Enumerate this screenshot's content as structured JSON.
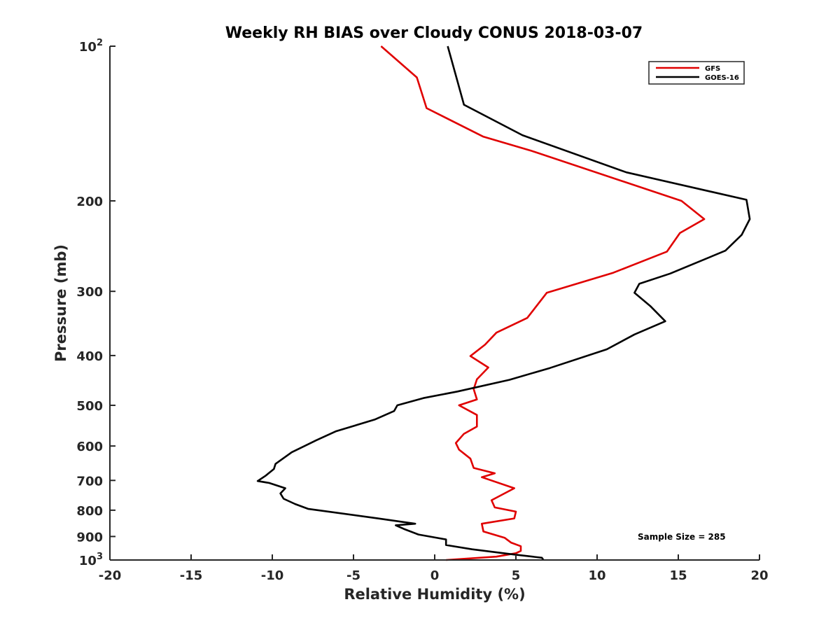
{
  "chart_data": {
    "type": "line",
    "title": "Weekly RH BIAS over Cloudy CONUS 2018-03-07",
    "xlabel": "Relative Humidity (%)",
    "ylabel": "Pressure (mb)",
    "xlim": [
      -20,
      20
    ],
    "ylim": [
      100,
      1000
    ],
    "y_scale": "log",
    "y_reversed": true,
    "grid": false,
    "legend_position": "top-right",
    "x_ticks": [
      {
        "value": -20,
        "label": "-20"
      },
      {
        "value": -15,
        "label": "-15"
      },
      {
        "value": -10,
        "label": "-10"
      },
      {
        "value": -5,
        "label": "-5"
      },
      {
        "value": 0,
        "label": "0"
      },
      {
        "value": 5,
        "label": "5"
      },
      {
        "value": 10,
        "label": "10"
      },
      {
        "value": 15,
        "label": "15"
      },
      {
        "value": 20,
        "label": "20"
      }
    ],
    "y_ticks": [
      {
        "value": 100,
        "label": "10",
        "sup": "2"
      },
      {
        "value": 200,
        "label": "200"
      },
      {
        "value": 300,
        "label": "300"
      },
      {
        "value": 400,
        "label": "400"
      },
      {
        "value": 500,
        "label": "500"
      },
      {
        "value": 600,
        "label": "600"
      },
      {
        "value": 700,
        "label": "700"
      },
      {
        "value": 800,
        "label": "800"
      },
      {
        "value": 900,
        "label": "900"
      },
      {
        "value": 1000,
        "label": "10",
        "sup": "3"
      }
    ],
    "annotation": "Sample Size = 285",
    "series": [
      {
        "name": "GFS",
        "color": "#e00000",
        "points": [
          [
            -3.3,
            100
          ],
          [
            -1.1,
            115
          ],
          [
            -0.5,
            132
          ],
          [
            3.0,
            150
          ],
          [
            6.0,
            160
          ],
          [
            15.2,
            200
          ],
          [
            16.6,
            217
          ],
          [
            15.1,
            231
          ],
          [
            14.3,
            251
          ],
          [
            11.0,
            276
          ],
          [
            6.9,
            302
          ],
          [
            5.7,
            338
          ],
          [
            3.8,
            361
          ],
          [
            3.1,
            381
          ],
          [
            2.2,
            401
          ],
          [
            3.3,
            422
          ],
          [
            2.6,
            445
          ],
          [
            2.4,
            465
          ],
          [
            2.6,
            487
          ],
          [
            1.5,
            500
          ],
          [
            2.6,
            522
          ],
          [
            2.6,
            550
          ],
          [
            1.8,
            568
          ],
          [
            1.3,
            592
          ],
          [
            1.5,
            610
          ],
          [
            2.2,
            635
          ],
          [
            2.4,
            662
          ],
          [
            3.7,
            678
          ],
          [
            2.9,
            690
          ],
          [
            4.9,
            725
          ],
          [
            3.5,
            765
          ],
          [
            3.7,
            790
          ],
          [
            5.0,
            805
          ],
          [
            4.9,
            830
          ],
          [
            2.9,
            850
          ],
          [
            3.0,
            880
          ],
          [
            4.3,
            905
          ],
          [
            4.7,
            925
          ],
          [
            5.3,
            940
          ],
          [
            5.3,
            960
          ],
          [
            5.0,
            970
          ],
          [
            3.8,
            985
          ],
          [
            0.7,
            1000
          ]
        ]
      },
      {
        "name": "GOES-16",
        "color": "#000000",
        "points": [
          [
            0.8,
            100
          ],
          [
            1.4,
            117
          ],
          [
            1.8,
            130
          ],
          [
            5.4,
            149
          ],
          [
            11.8,
            176
          ],
          [
            19.2,
            199
          ],
          [
            19.4,
            217
          ],
          [
            18.9,
            233
          ],
          [
            17.9,
            250
          ],
          [
            14.5,
            277
          ],
          [
            12.6,
            290
          ],
          [
            12.3,
            302
          ],
          [
            13.3,
            321
          ],
          [
            14.2,
            343
          ],
          [
            12.3,
            364
          ],
          [
            10.6,
            389
          ],
          [
            7.1,
            423
          ],
          [
            4.6,
            446
          ],
          [
            1.4,
            470
          ],
          [
            -0.7,
            484
          ],
          [
            -2.3,
            500
          ],
          [
            -2.5,
            513
          ],
          [
            -3.7,
            533
          ],
          [
            -6.1,
            562
          ],
          [
            -7.3,
            585
          ],
          [
            -8.8,
            617
          ],
          [
            -9.8,
            650
          ],
          [
            -9.9,
            665
          ],
          [
            -10.4,
            685
          ],
          [
            -10.9,
            702
          ],
          [
            -10.2,
            708
          ],
          [
            -9.2,
            725
          ],
          [
            -9.5,
            742
          ],
          [
            -9.3,
            760
          ],
          [
            -8.6,
            778
          ],
          [
            -7.8,
            795
          ],
          [
            -3.5,
            830
          ],
          [
            -1.2,
            850
          ],
          [
            -2.4,
            856
          ],
          [
            -1.9,
            870
          ],
          [
            -1.0,
            892
          ],
          [
            0.7,
            912
          ],
          [
            0.7,
            935
          ],
          [
            2.3,
            953
          ],
          [
            4.8,
            975
          ],
          [
            6.6,
            990
          ],
          [
            6.7,
            1000
          ]
        ]
      }
    ]
  }
}
